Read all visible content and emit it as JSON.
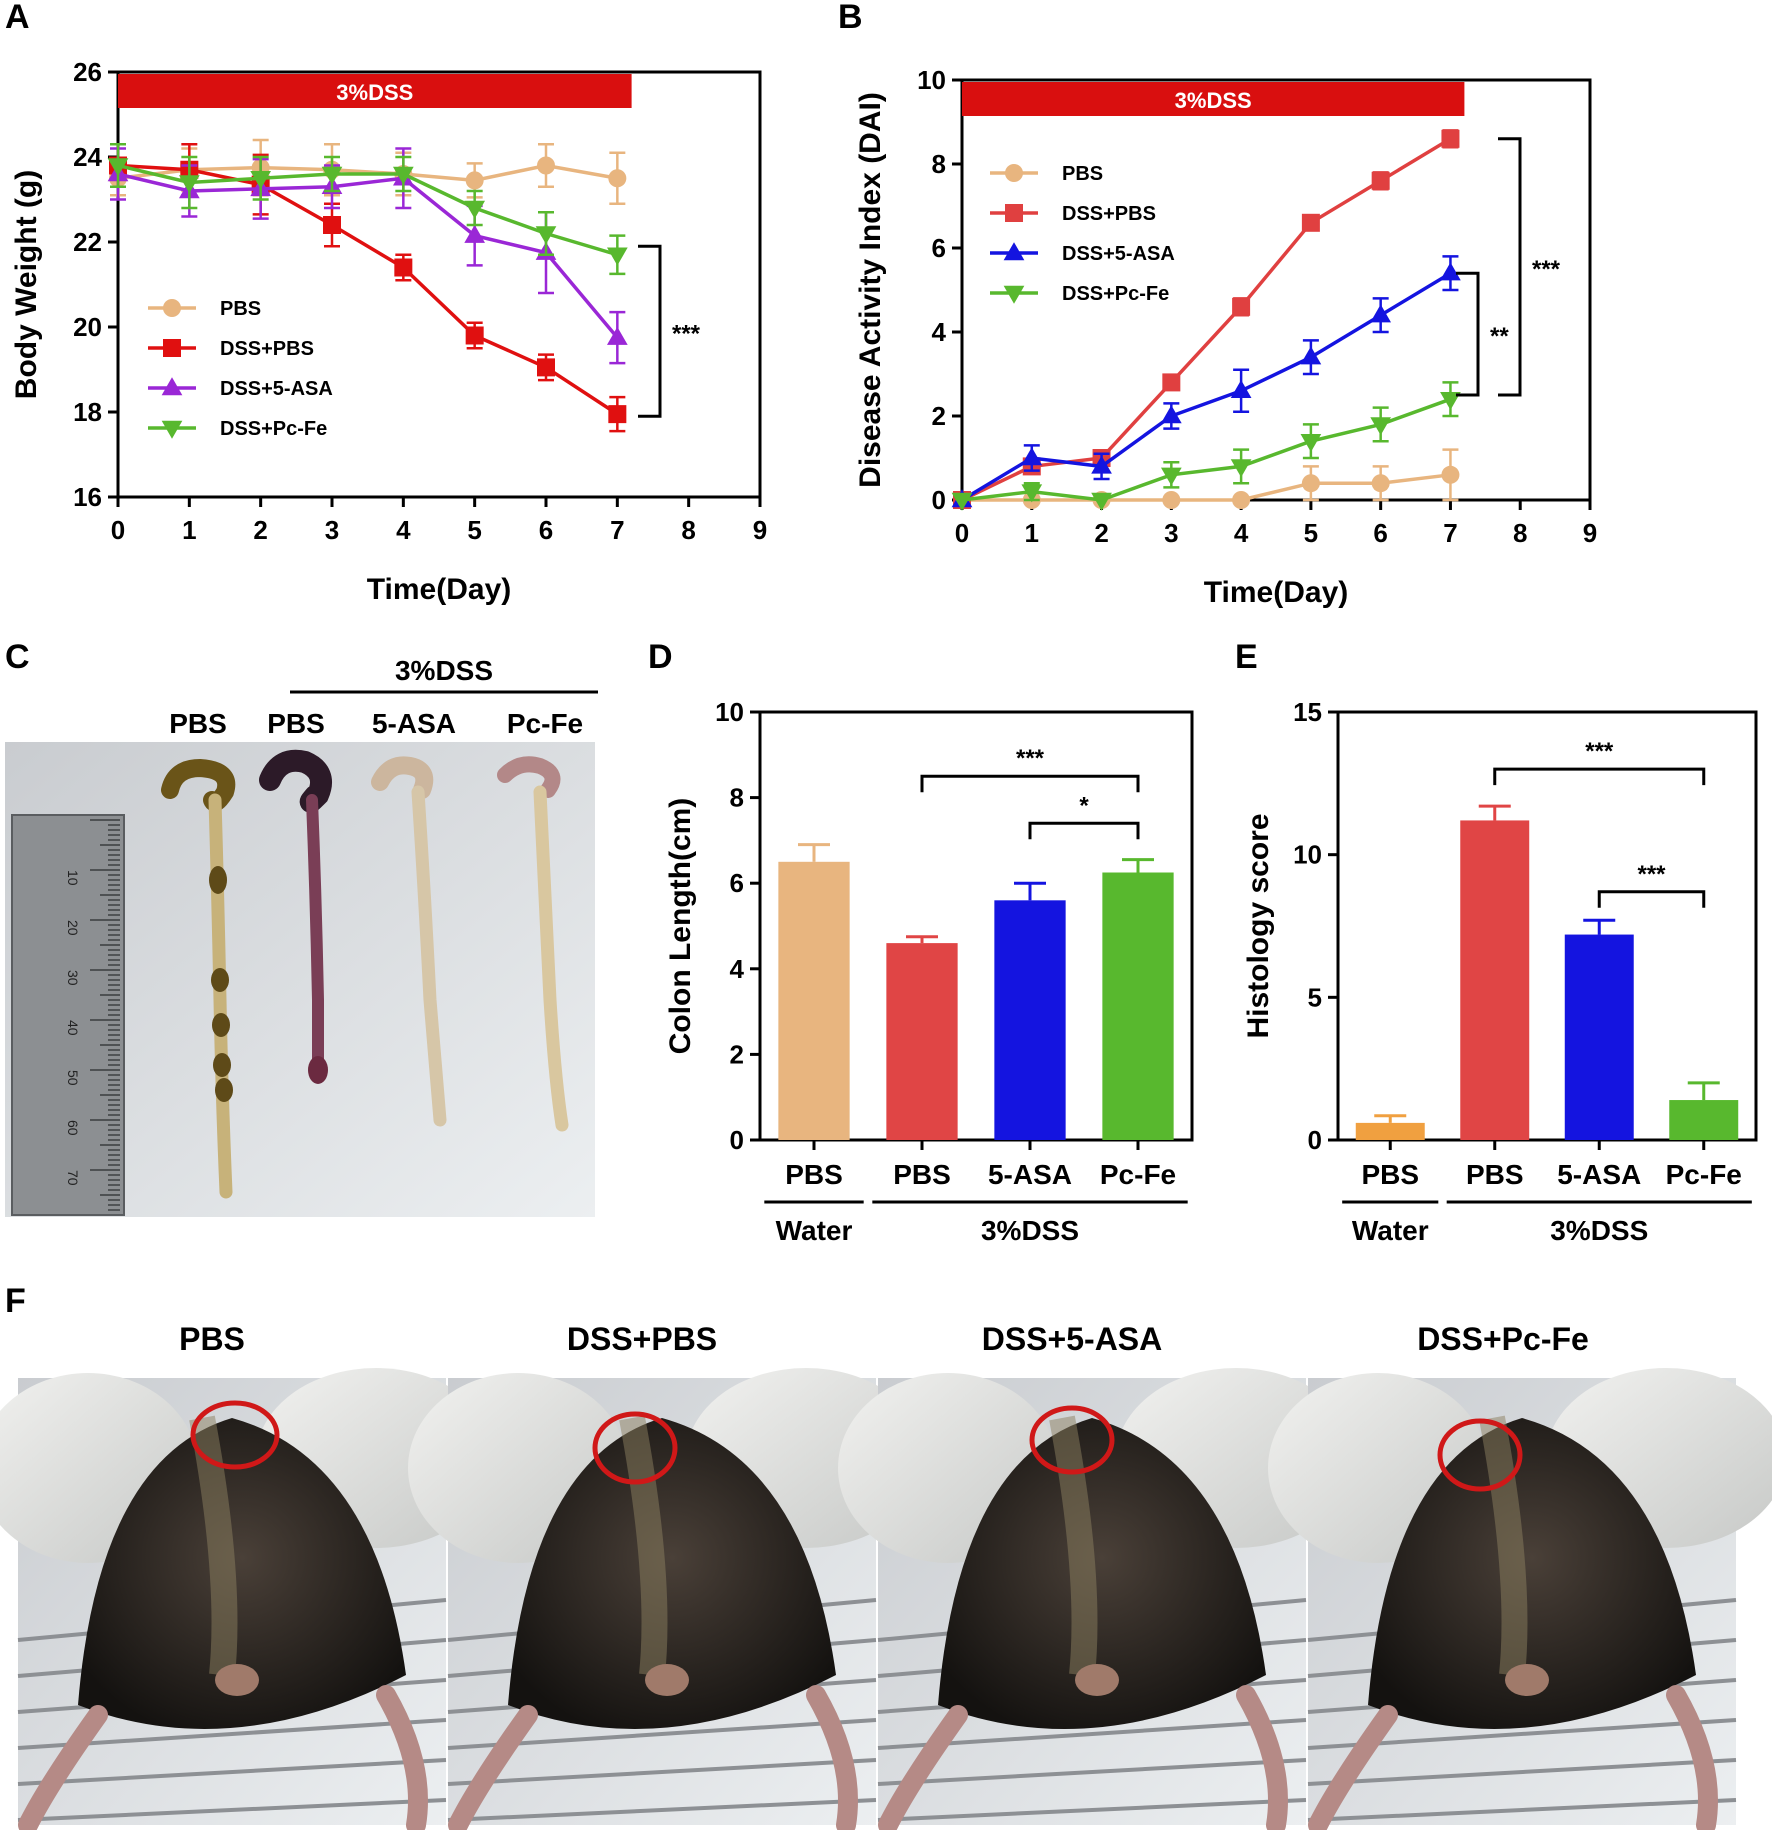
{
  "panel_letters": [
    "A",
    "B",
    "C",
    "D",
    "E",
    "F"
  ],
  "chart_data": [
    {
      "type": "line",
      "panel": "A",
      "title": "",
      "xlabel": "Time(Day)",
      "ylabel": "Body Weight (g)",
      "xlim": [
        0,
        9
      ],
      "ylim": [
        16,
        26
      ],
      "xticks": [
        0,
        1,
        2,
        3,
        4,
        5,
        6,
        7,
        8,
        9
      ],
      "yticks": [
        16,
        18,
        20,
        22,
        24,
        26
      ],
      "treatment_bar": {
        "label": "3%DSS",
        "x_start": 0,
        "x_end": 7.2,
        "color": "#d90f0f"
      },
      "legend_position": "center-left",
      "x": [
        0,
        1,
        2,
        3,
        4,
        5,
        6,
        7
      ],
      "series": [
        {
          "name": "PBS",
          "color": "#e8b57f",
          "marker": "circle",
          "values": [
            23.5,
            23.7,
            23.75,
            23.7,
            23.6,
            23.45,
            23.8,
            23.5
          ],
          "errors": [
            0.4,
            0.5,
            0.65,
            0.6,
            0.5,
            0.4,
            0.5,
            0.6
          ]
        },
        {
          "name": "DSS+PBS",
          "color": "#e01010",
          "marker": "square",
          "values": [
            23.8,
            23.7,
            23.35,
            22.4,
            21.4,
            19.8,
            19.05,
            17.95
          ],
          "errors": [
            0.5,
            0.6,
            0.7,
            0.5,
            0.3,
            0.3,
            0.3,
            0.4
          ]
        },
        {
          "name": "DSS+5-ASA",
          "color": "#9a27d6",
          "marker": "triangle-up",
          "values": [
            23.6,
            23.2,
            23.25,
            23.3,
            23.5,
            22.15,
            21.75,
            19.75
          ],
          "errors": [
            0.6,
            0.6,
            0.7,
            0.5,
            0.7,
            0.7,
            0.95,
            0.6
          ]
        },
        {
          "name": "DSS+Pc-Fe",
          "color": "#58b82e",
          "marker": "triangle-down",
          "values": [
            23.8,
            23.4,
            23.5,
            23.6,
            23.6,
            22.8,
            22.2,
            21.7
          ],
          "errors": [
            0.5,
            0.6,
            0.5,
            0.4,
            0.4,
            0.4,
            0.5,
            0.45
          ]
        }
      ],
      "annotations": [
        {
          "text": "***",
          "between": [
            "DSS+Pc-Fe",
            "DSS+PBS"
          ],
          "y1": 21.9,
          "y2": 17.9
        }
      ]
    },
    {
      "type": "line",
      "panel": "B",
      "title": "",
      "xlabel": "Time(Day)",
      "ylabel": "Disease Activity Index (DAI)",
      "xlim": [
        0,
        9
      ],
      "ylim": [
        0,
        10
      ],
      "xticks": [
        0,
        1,
        2,
        3,
        4,
        5,
        6,
        7,
        8,
        9
      ],
      "yticks": [
        0,
        2,
        4,
        6,
        8,
        10
      ],
      "treatment_bar": {
        "label": "3%DSS",
        "x_start": 0,
        "x_end": 7.2,
        "color": "#d90f0f"
      },
      "legend_position": "top-left",
      "x": [
        0,
        1,
        2,
        3,
        4,
        5,
        6,
        7
      ],
      "series": [
        {
          "name": "PBS",
          "color": "#e8b57f",
          "marker": "circle",
          "values": [
            0,
            0,
            0,
            0,
            0,
            0.4,
            0.4,
            0.6
          ],
          "errors": [
            0,
            0,
            0,
            0,
            0,
            0.4,
            0.4,
            0.6
          ]
        },
        {
          "name": "DSS+PBS",
          "color": "#e04040",
          "marker": "square",
          "values": [
            0,
            0.8,
            1.0,
            2.8,
            4.6,
            6.6,
            7.6,
            8.6
          ],
          "errors": [
            0,
            0.1,
            0.1,
            0.1,
            0.2,
            0.15,
            0.2,
            0.2
          ]
        },
        {
          "name": "DSS+5-ASA",
          "color": "#1414e0",
          "marker": "triangle-up",
          "values": [
            0,
            1.0,
            0.8,
            2.0,
            2.6,
            3.4,
            4.4,
            5.4
          ],
          "errors": [
            0,
            0.3,
            0.3,
            0.3,
            0.5,
            0.4,
            0.4,
            0.4
          ]
        },
        {
          "name": "DSS+Pc-Fe",
          "color": "#58b82e",
          "marker": "triangle-down",
          "values": [
            0,
            0.2,
            0,
            0.6,
            0.8,
            1.4,
            1.8,
            2.4
          ],
          "errors": [
            0,
            0.2,
            0,
            0.3,
            0.4,
            0.4,
            0.4,
            0.4
          ]
        }
      ],
      "annotations": [
        {
          "text": "***",
          "between": [
            "DSS+PBS",
            "DSS+Pc-Fe"
          ],
          "y1": 8.6,
          "y2": 2.5
        },
        {
          "text": "**",
          "between": [
            "DSS+5-ASA",
            "DSS+Pc-Fe"
          ],
          "y1": 5.4,
          "y2": 2.5
        }
      ]
    },
    {
      "type": "bar",
      "panel": "D",
      "title": "",
      "xlabel": "",
      "ylabel": "Colon Length(cm)",
      "ylim": [
        0,
        10
      ],
      "yticks": [
        0,
        2,
        4,
        6,
        8,
        10
      ],
      "categories": [
        "PBS",
        "PBS",
        "5-ASA",
        "Pc-Fe"
      ],
      "values": [
        6.5,
        4.6,
        5.6,
        6.25
      ],
      "errors": [
        0.4,
        0.15,
        0.4,
        0.3
      ],
      "colors": [
        "#e8b57f",
        "#e04545",
        "#1414e0",
        "#58b82e"
      ],
      "groups": [
        {
          "label": "Water",
          "from": 0,
          "to": 0
        },
        {
          "label": "3%DSS",
          "from": 1,
          "to": 3
        }
      ],
      "annotations": [
        {
          "text": "***",
          "from": 1,
          "to": 3,
          "y": 8.5
        },
        {
          "text": "*",
          "from": 2,
          "to": 3,
          "y": 7.4
        }
      ]
    },
    {
      "type": "bar",
      "panel": "E",
      "title": "",
      "xlabel": "",
      "ylabel": "Histology score",
      "ylim": [
        0,
        15
      ],
      "yticks": [
        0,
        5,
        10,
        15
      ],
      "categories": [
        "PBS",
        "PBS",
        "5-ASA",
        "Pc-Fe"
      ],
      "values": [
        0.6,
        11.2,
        7.2,
        1.4
      ],
      "errors": [
        0.25,
        0.5,
        0.5,
        0.6
      ],
      "colors": [
        "#f0a040",
        "#e04545",
        "#1414e0",
        "#58b82e"
      ],
      "groups": [
        {
          "label": "Water",
          "from": 0,
          "to": 0
        },
        {
          "label": "3%DSS",
          "from": 1,
          "to": 3
        }
      ],
      "annotations": [
        {
          "text": "***",
          "from": 1,
          "to": 3,
          "y": 13.0
        },
        {
          "text": "***",
          "from": 2,
          "to": 3,
          "y": 8.7
        }
      ]
    }
  ],
  "panel_c": {
    "bracket_label": "3%DSS",
    "column_labels": [
      "PBS",
      "PBS",
      "5-ASA",
      "Pc-Fe"
    ],
    "ruler_marks": [
      "10",
      "20",
      "30",
      "40",
      "50",
      "60",
      "70"
    ]
  },
  "panel_f": {
    "photo_labels": [
      "PBS",
      "DSS+PBS",
      "DSS+5-ASA",
      "DSS+Pc-Fe"
    ],
    "circle_color": "#d01818"
  }
}
